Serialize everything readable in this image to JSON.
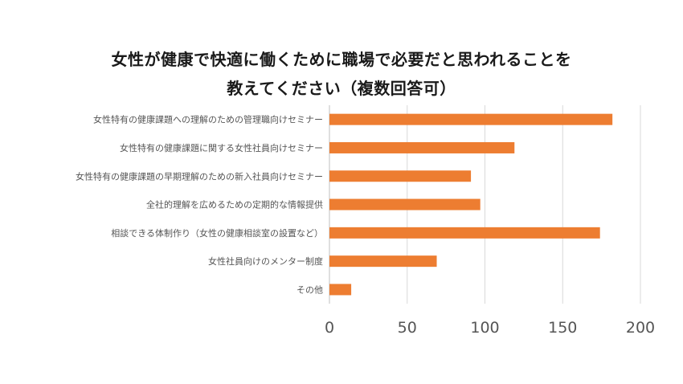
{
  "chart_data": {
    "type": "bar",
    "orientation": "horizontal",
    "title_lines": [
      "女性が健康で快適に働くために職場で必要だと思われることを",
      "教えてください（複数回答可）"
    ],
    "categories": [
      "女性特有の健康課題への理解のための管理職向けセミナー",
      "女性特有の健康課題に関する女性社員向けセミナー",
      "女性特有の健康課題の早期理解のための新入社員向けセミナー",
      "全社的理解を広めるための定期的な情報提供",
      "相談できる体制作り（女性の健康相談室の設置など）",
      "女性社員向けのメンター制度",
      "その他"
    ],
    "values": [
      182,
      119,
      91,
      97,
      174,
      69,
      14
    ],
    "xlim": [
      0,
      200
    ],
    "xticks": [
      "0",
      "50",
      "100",
      "150",
      "200"
    ],
    "grid": true,
    "bar_color": "#ED7D31"
  }
}
